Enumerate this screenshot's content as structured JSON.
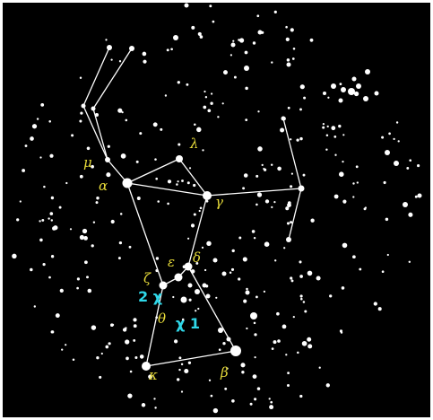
{
  "colors": {
    "sky": "#000000",
    "border": "#ffffff",
    "stars": "#ffffff",
    "lines": "#ffffff",
    "greek_labels": "#e8dc3a",
    "catalog_labels": "#2fd7e8"
  },
  "greek_labels": {
    "mu": "μ",
    "alpha": "α",
    "lambda": "λ",
    "gamma": "γ",
    "epsilon": "ε",
    "delta": "δ",
    "zeta": "ζ",
    "theta": "θ",
    "kappa": "κ",
    "beta": "β"
  },
  "catalog_labels": {
    "chi2": "2 χ",
    "chi1": "χ 1"
  }
}
